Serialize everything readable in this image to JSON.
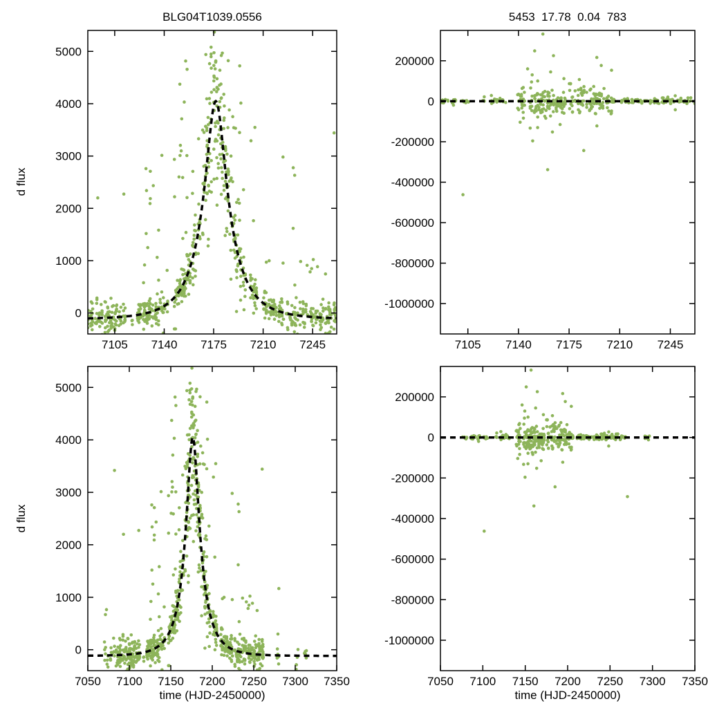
{
  "page": {
    "background": "#ffffff"
  },
  "chart_data": {
    "type": "scatter",
    "description": "2x2 grid of microlensing light-curve scatter plots with dashed model fits",
    "style": {
      "point_color": "#8db45a",
      "point_radius": 2.3,
      "fit_color": "#000000",
      "fit_width": 3.5,
      "fit_dash": "8 6",
      "axis_color": "#000000"
    },
    "panels": [
      {
        "id": "flux-zoom",
        "dataset": "flux",
        "title": "BLG04T1039.0556",
        "xlabel": "",
        "ylabel": "d flux",
        "xlim": [
          7086,
          7262
        ],
        "ylim": [
          -400,
          5400
        ],
        "xticks": [
          7105,
          7140,
          7175,
          7210,
          7245
        ],
        "yticks": [
          0,
          1000,
          2000,
          3000,
          4000,
          5000
        ]
      },
      {
        "id": "residual-zoom",
        "dataset": "residual",
        "title": "5453  17.78  0.04  783",
        "xlabel": "",
        "ylabel": "",
        "xlim": [
          7086,
          7262
        ],
        "ylim": [
          -1150000,
          350000
        ],
        "xticks": [
          7105,
          7140,
          7175,
          7210,
          7245
        ],
        "yticks": [
          -1000000,
          -800000,
          -600000,
          -400000,
          -200000,
          0,
          200000
        ]
      },
      {
        "id": "flux-full",
        "dataset": "flux",
        "title": "",
        "xlabel": "time (HJD-2450000)",
        "ylabel": "d flux",
        "xlim": [
          7050,
          7350
        ],
        "ylim": [
          -400,
          5400
        ],
        "xticks": [
          7050,
          7100,
          7150,
          7200,
          7250,
          7300,
          7350
        ],
        "yticks": [
          0,
          1000,
          2000,
          3000,
          4000,
          5000
        ]
      },
      {
        "id": "residual-full",
        "dataset": "residual",
        "title": "",
        "xlabel": "time (HJD-2450000)",
        "ylabel": "",
        "xlim": [
          7050,
          7350
        ],
        "ylim": [
          -1150000,
          350000
        ],
        "xticks": [
          7050,
          7100,
          7150,
          7200,
          7250,
          7300,
          7350
        ],
        "yticks": [
          -1000000,
          -800000,
          -600000,
          -400000,
          -200000,
          0,
          200000
        ]
      }
    ],
    "datasets": {
      "flux": {
        "model": {
          "kind": "paczynski",
          "t0": 7176.5,
          "tE": 26,
          "u0": 0.3,
          "fs": 1705,
          "baseline": -120,
          "peak_dflux": 4050
        },
        "sampling": {
          "seed": 20240,
          "spans": [
            [
              7062,
              7086,
              0.5,
              1,
              3
            ],
            [
              7086,
              7122,
              0.85,
              2,
              7
            ],
            [
              7122,
              7150,
              0.9,
              3,
              9
            ],
            [
              7150,
              7168,
              0.9,
              4,
              10
            ],
            [
              7168,
              7186,
              0.95,
              6,
              14
            ],
            [
              7186,
              7216,
              0.9,
              3,
              9
            ],
            [
              7216,
              7262,
              0.85,
              3,
              8
            ],
            [
              7262,
              7318,
              0.35,
              1,
              3
            ]
          ]
        },
        "noise": {
          "sigma_base": 140,
          "sigma_prop": 0.22,
          "peak_window": [
            7125,
            7215
          ],
          "outlier_prob_peak": 0.16,
          "outlier_prob_base": 0.04,
          "outlier_max": 4800,
          "neg_outlier_prob": 0.05,
          "neg_outlier_max": 1800
        },
        "outliers": []
      },
      "residual": {
        "model": {
          "kind": "flat",
          "level": 0
        },
        "sampling": {
          "seed": 777,
          "spans": [
            [
              7062,
              7086,
              0.5,
              1,
              2
            ],
            [
              7086,
              7140,
              0.8,
              1,
              4
            ],
            [
              7140,
              7205,
              0.9,
              2,
              7
            ],
            [
              7205,
              7262,
              0.8,
              1,
              4
            ],
            [
              7262,
              7318,
              0.35,
              1,
              2
            ]
          ]
        },
        "noise": {
          "sigma_base": 5500,
          "sigma_peak": 30000,
          "peak_window": [
            7138,
            7205
          ],
          "tail_prob": 0.12,
          "tail_scale": 4
        },
        "outliers": [
          [
            7101.6,
            -462000
          ],
          [
            7160.2,
            -338000
          ],
          [
            7149.8,
            -196000
          ],
          [
            7163.5,
            -152000
          ],
          [
            7168.8,
            -115000
          ],
          [
            7156.9,
            332000
          ],
          [
            7151.2,
            249000
          ],
          [
            7146.3,
            160000
          ],
          [
            7171.4,
            112000
          ],
          [
            7176.0,
            86000
          ],
          [
            7158.9,
            -84000
          ],
          [
            7183.2,
            64000
          ],
          [
            7270.5,
            -292000
          ]
        ]
      }
    }
  }
}
